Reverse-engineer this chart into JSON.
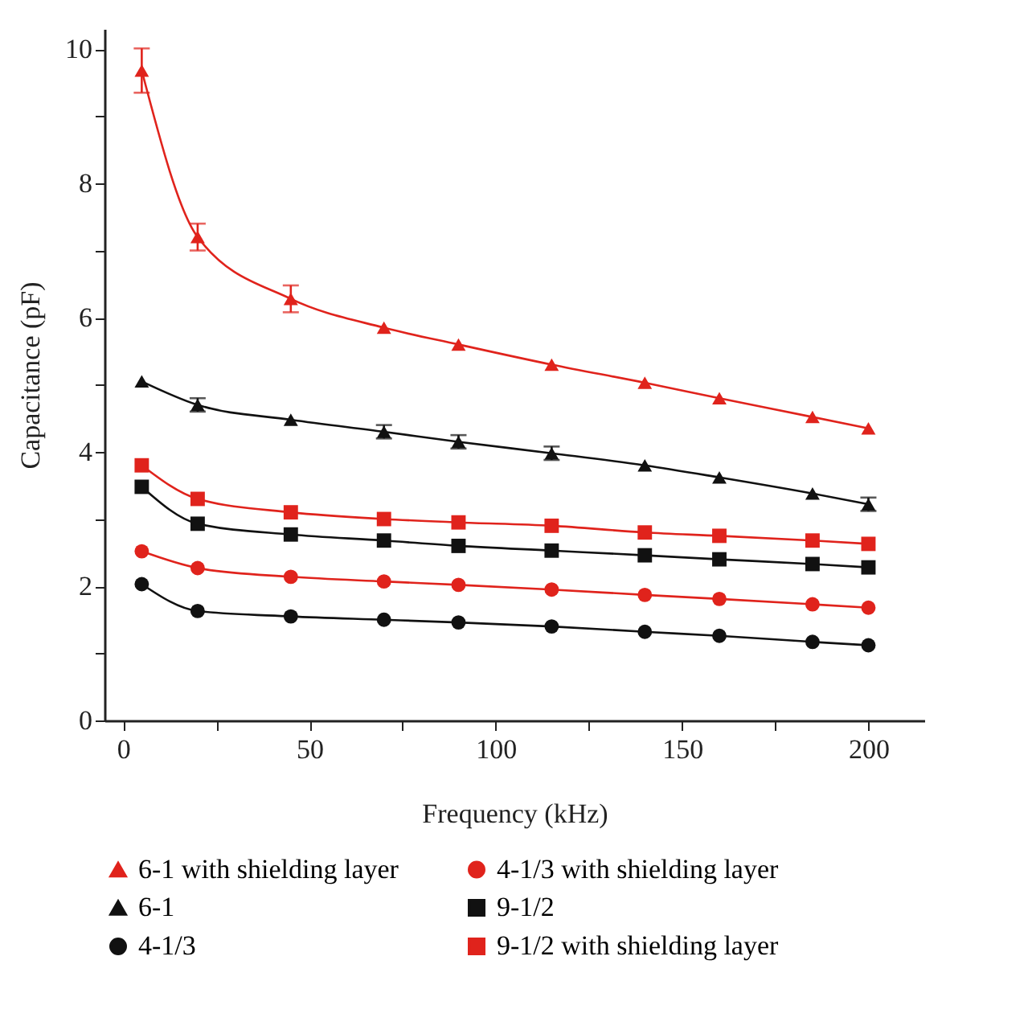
{
  "chart_data": {
    "type": "line",
    "xlabel": "Frequency (kHz)",
    "ylabel": "Capacitance (pF)",
    "x": [
      5,
      20,
      45,
      70,
      90,
      115,
      140,
      160,
      185,
      200
    ],
    "xlim": [
      -5,
      215
    ],
    "ylim": [
      0,
      10.3
    ],
    "xticks": [
      0,
      {
        "value": 25,
        "label": null
      },
      50,
      {
        "value": 75,
        "label": null
      },
      100,
      {
        "value": 125,
        "label": null
      },
      150,
      {
        "value": 175,
        "label": null
      },
      200
    ],
    "yticks": [
      0,
      {
        "value": 1,
        "label": null
      },
      2,
      {
        "value": 3,
        "label": null
      },
      4,
      {
        "value": 5,
        "label": null
      },
      6,
      {
        "value": 7,
        "label": null
      },
      8,
      {
        "value": 9,
        "label": null
      },
      10
    ],
    "grid": false,
    "legend": "bottom",
    "line_style": "solid",
    "series": [
      {
        "name": "6-1 with shielding layer",
        "color": "#e0231c",
        "marker": "triangle",
        "values": [
          9.68,
          7.2,
          6.28,
          5.85,
          5.6,
          5.3,
          5.03,
          4.8,
          4.52,
          4.35
        ],
        "errors": [
          0.33,
          0.2,
          0.2,
          null,
          null,
          null,
          null,
          null,
          null,
          null
        ]
      },
      {
        "name": "4-1/3 with shielding layer",
        "color": "#e0231c",
        "marker": "circle",
        "values": [
          2.52,
          2.27,
          2.14,
          2.07,
          2.02,
          1.95,
          1.87,
          1.81,
          1.73,
          1.68
        ]
      },
      {
        "name": "6-1",
        "color": "#111111",
        "marker": "triangle",
        "values": [
          5.05,
          4.7,
          4.48,
          4.3,
          4.15,
          3.98,
          3.8,
          3.62,
          3.38,
          3.22
        ],
        "errors": [
          null,
          0.1,
          null,
          0.1,
          0.1,
          0.1,
          null,
          null,
          null,
          0.1
        ]
      },
      {
        "name": "9-1/2",
        "color": "#111111",
        "marker": "square",
        "values": [
          3.48,
          2.93,
          2.77,
          2.68,
          2.6,
          2.53,
          2.46,
          2.4,
          2.33,
          2.28
        ]
      },
      {
        "name": "4-1/3",
        "color": "#111111",
        "marker": "circle",
        "values": [
          2.03,
          1.63,
          1.55,
          1.5,
          1.46,
          1.4,
          1.32,
          1.26,
          1.17,
          1.12
        ]
      },
      {
        "name": "9-1/2 with shielding layer",
        "color": "#e0231c",
        "marker": "square",
        "values": [
          3.8,
          3.3,
          3.1,
          3.0,
          2.95,
          2.9,
          2.8,
          2.75,
          2.68,
          2.63
        ]
      }
    ]
  }
}
